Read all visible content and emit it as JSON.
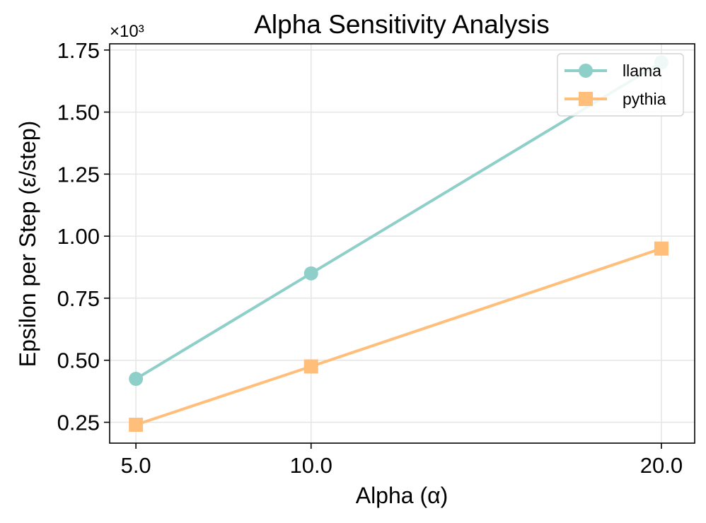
{
  "chart_data": {
    "type": "line",
    "title": "Alpha Sensitivity Analysis",
    "xlabel": "Alpha (α)",
    "ylabel": "Epsilon per Step (ε/step)",
    "y_scale_label": "×10³",
    "x": [
      5.0,
      10.0,
      20.0
    ],
    "x_tick_labels": [
      "5.0",
      "10.0",
      "20.0"
    ],
    "xlim": [
      4.25,
      20.95
    ],
    "ylim": [
      0.166,
      1.775
    ],
    "y_ticks": [
      0.25,
      0.5,
      0.75,
      1.0,
      1.25,
      1.5,
      1.75
    ],
    "y_tick_labels": [
      "0.25",
      "0.50",
      "0.75",
      "1.00",
      "1.25",
      "1.50",
      "1.75"
    ],
    "grid": true,
    "legend_position": "top-right",
    "series": [
      {
        "name": "llama",
        "values": [
          0.425,
          0.85,
          1.7
        ],
        "color": "#8ecfc9",
        "marker": "circle"
      },
      {
        "name": "pythia",
        "values": [
          0.24,
          0.475,
          0.95
        ],
        "color": "#ffbe7a",
        "marker": "square"
      }
    ]
  }
}
